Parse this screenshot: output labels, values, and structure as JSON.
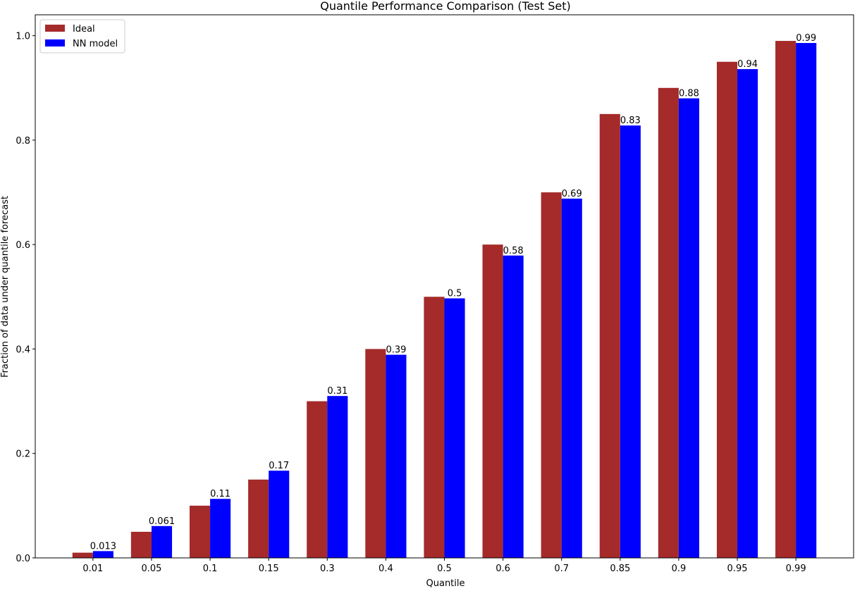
{
  "chart_data": {
    "type": "bar",
    "title": "Quantile Performance Comparison (Test Set)",
    "xlabel": "Quantile",
    "ylabel": "Fraction of data under quantile forecast",
    "categories": [
      "0.01",
      "0.05",
      "0.1",
      "0.15",
      "0.3",
      "0.4",
      "0.5",
      "0.6",
      "0.7",
      "0.85",
      "0.9",
      "0.95",
      "0.99"
    ],
    "series": [
      {
        "name": "Ideal",
        "color": "#a52a2a",
        "values": [
          0.01,
          0.05,
          0.1,
          0.15,
          0.3,
          0.4,
          0.5,
          0.6,
          0.7,
          0.85,
          0.9,
          0.95,
          0.99
        ]
      },
      {
        "name": "NN model",
        "color": "#0000ff",
        "values": [
          0.013,
          0.061,
          0.113,
          0.167,
          0.31,
          0.389,
          0.497,
          0.579,
          0.688,
          0.828,
          0.88,
          0.936,
          0.986
        ],
        "data_labels": [
          "0.013",
          "0.061",
          "0.11",
          "0.17",
          "0.31",
          "0.39",
          "0.5",
          "0.58",
          "0.69",
          "0.83",
          "0.88",
          "0.94",
          "0.99"
        ]
      }
    ],
    "ylim": [
      0,
      1.04
    ],
    "yticks": [
      "0.0",
      "0.2",
      "0.4",
      "0.6",
      "0.8",
      "1.0"
    ],
    "grid": false,
    "legend_placement": "top-left"
  }
}
